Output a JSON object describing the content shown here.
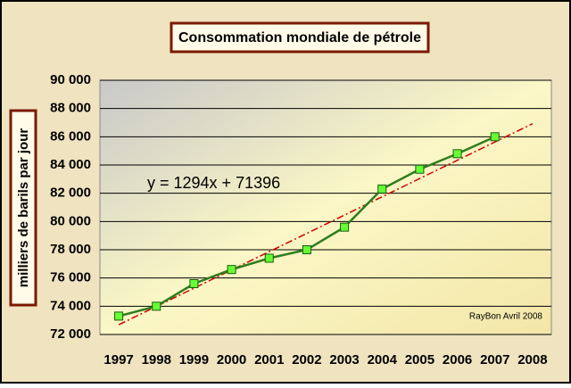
{
  "chart_data": {
    "type": "line",
    "title": "Consommation mondiale de pétrole",
    "y_label": "milliers de barils par jour",
    "annotation": "y = 1294x + 71396",
    "credit": "RayBon Avril 2008",
    "categories": [
      "1997",
      "1998",
      "1999",
      "2000",
      "2001",
      "2002",
      "2003",
      "2004",
      "2005",
      "2006",
      "2007",
      "2008"
    ],
    "series": [
      {
        "color": "#2e7d1e",
        "marker_color": "#66ff33",
        "values": [
          73300,
          74000,
          75600,
          76600,
          77400,
          78000,
          79600,
          82300,
          83700,
          84800,
          86000,
          null
        ]
      }
    ],
    "trend": {
      "color": "#d00000",
      "values": [
        72690,
        73984,
        75278,
        76572,
        77866,
        79160,
        80454,
        81748,
        83042,
        84336,
        85630,
        86924
      ]
    },
    "ylim": [
      72000,
      90000
    ],
    "yticks": [
      {
        "value": 72000,
        "label": "72 000"
      },
      {
        "value": 74000,
        "label": "74 000"
      },
      {
        "value": 76000,
        "label": "76 000"
      },
      {
        "value": 78000,
        "label": "78 000"
      },
      {
        "value": 80000,
        "label": "80 000"
      },
      {
        "value": 82000,
        "label": "82 000"
      },
      {
        "value": 84000,
        "label": "84 000"
      },
      {
        "value": 86000,
        "label": "86 000"
      },
      {
        "value": 88000,
        "label": "88 000"
      },
      {
        "value": 90000,
        "label": "90 000"
      }
    ],
    "grid": true
  }
}
